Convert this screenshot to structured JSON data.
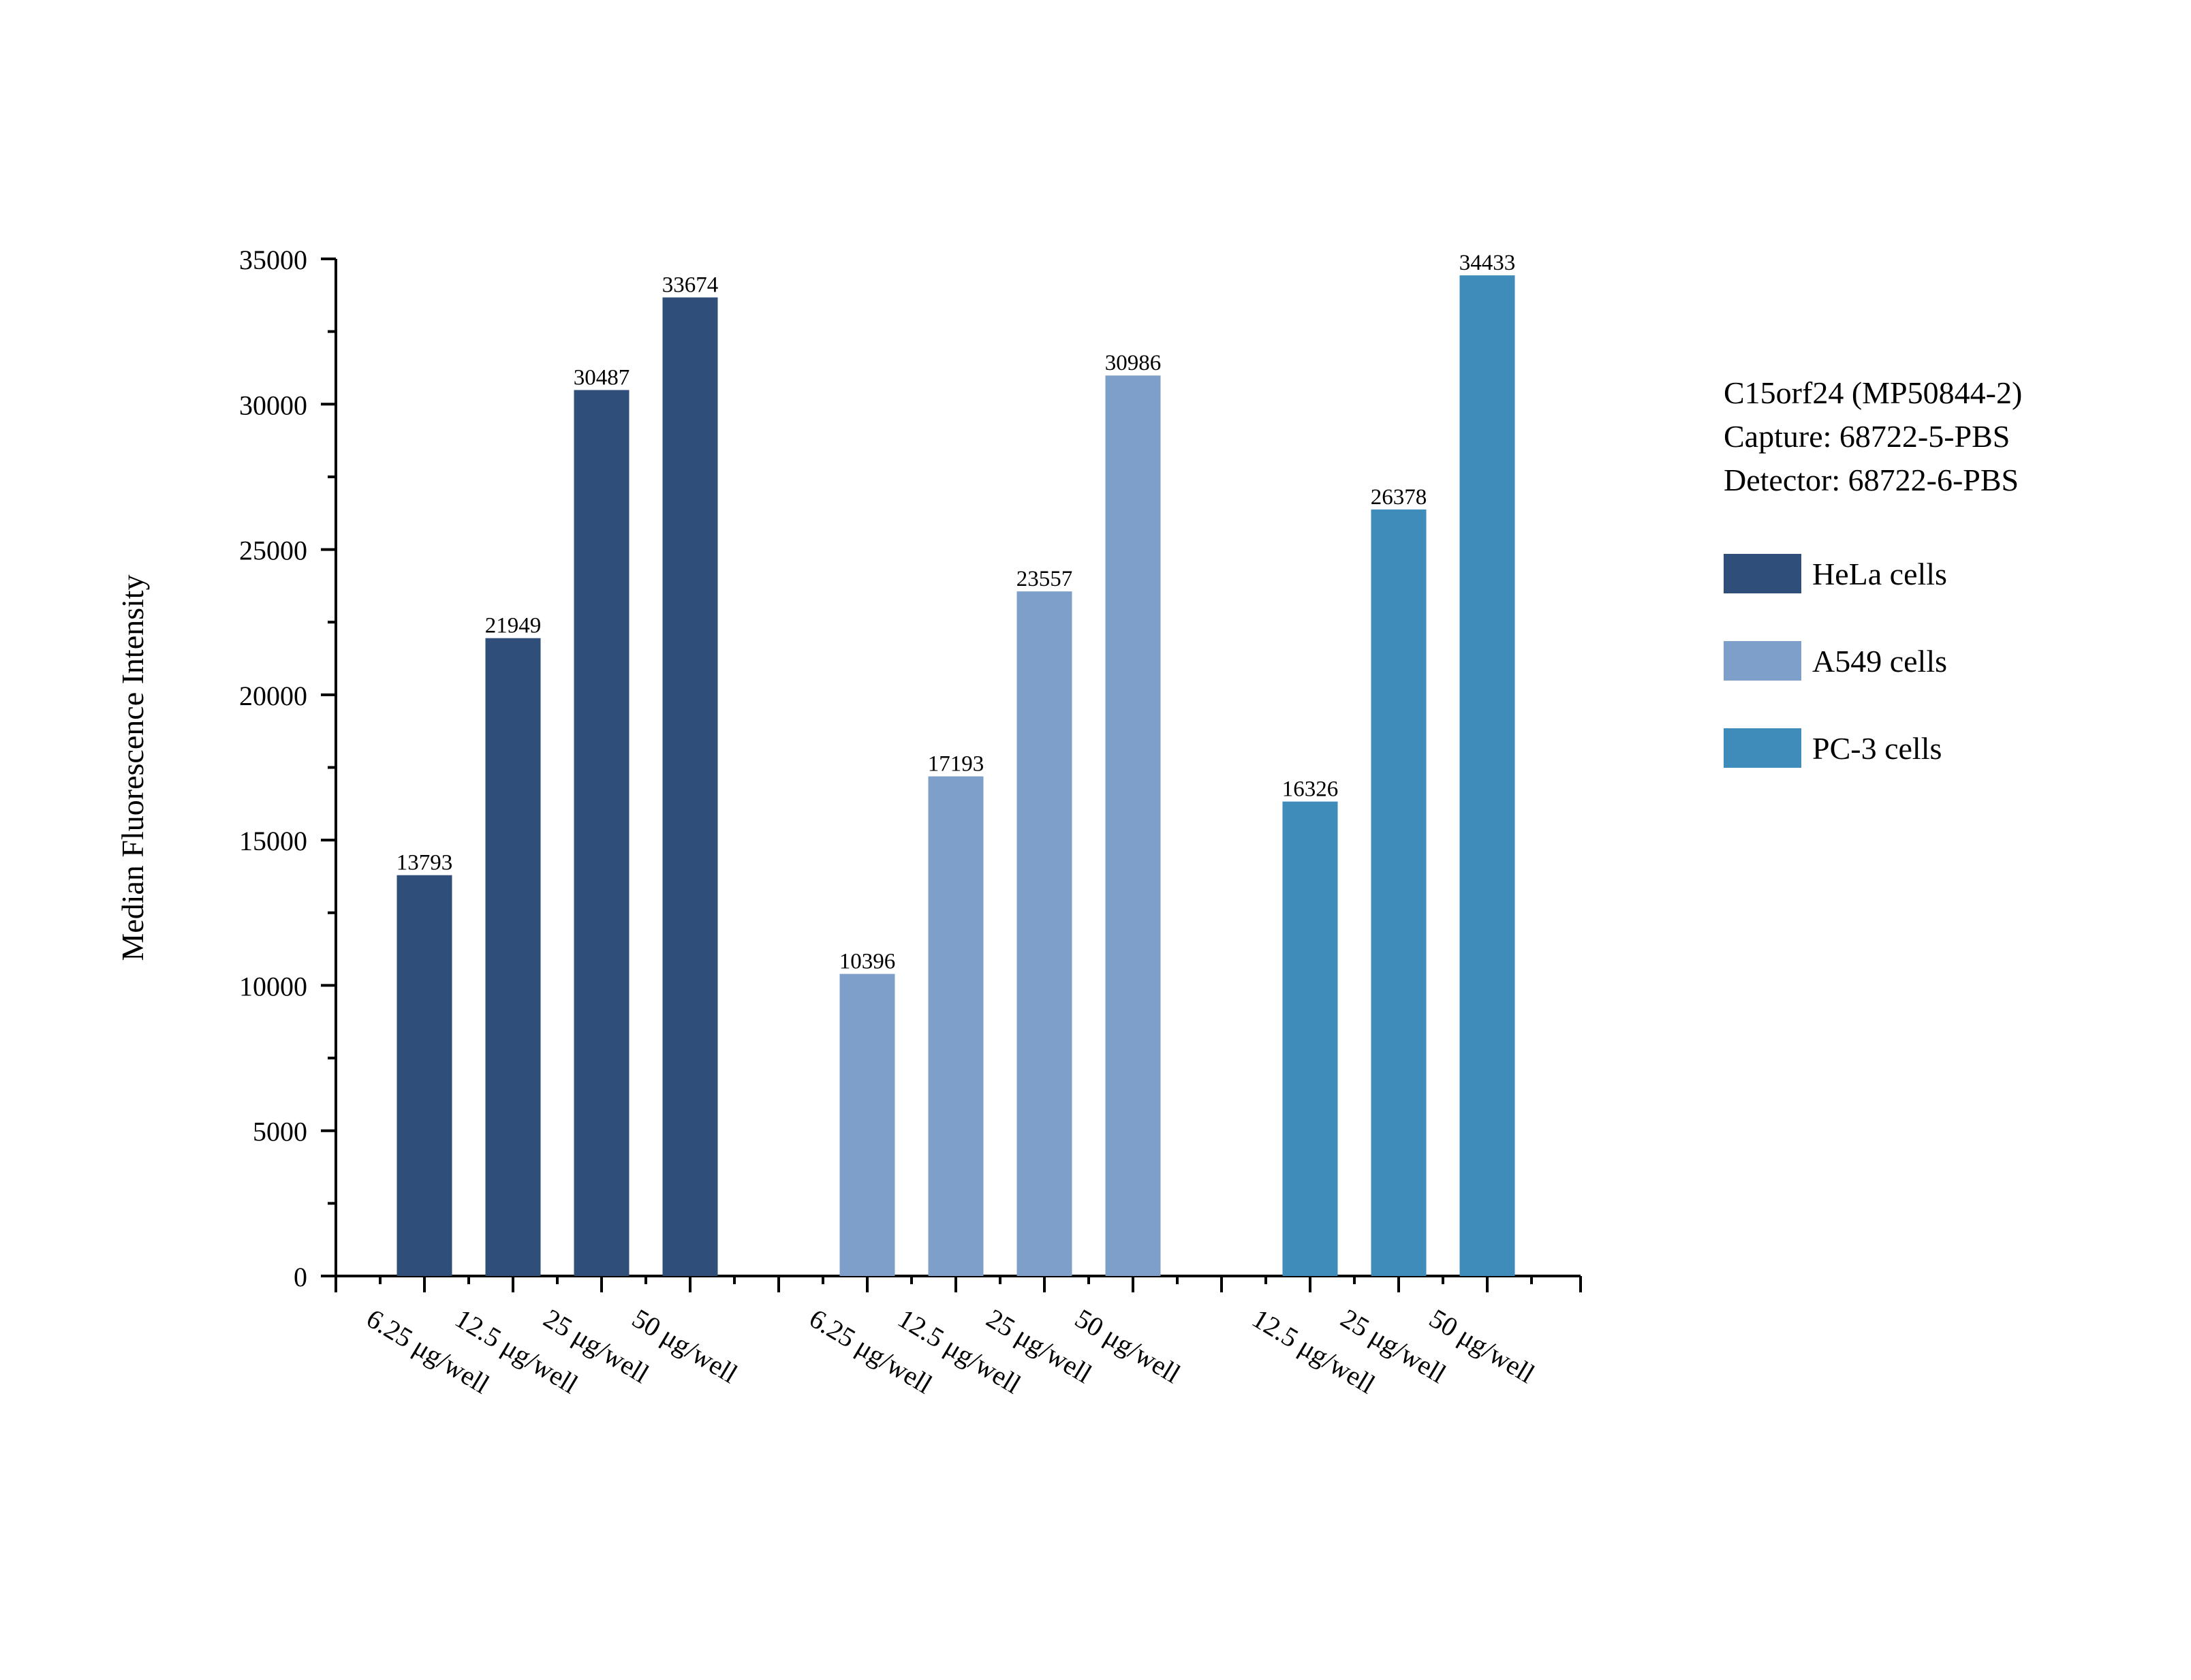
{
  "chart_data": {
    "type": "bar",
    "title_lines": [
      "C15orf24 (MP50844-2)",
      "Capture: 68722-5-PBS",
      "Detector: 68722-6-PBS"
    ],
    "ylabel": "Median Fluorescence Intensity",
    "xlabel": "",
    "ylim": [
      0,
      35000
    ],
    "yticks": [
      "0",
      "5000",
      "10000",
      "15000",
      "20000",
      "25000",
      "30000",
      "35000"
    ],
    "legend_position": "right",
    "series": [
      {
        "name": "HeLa cells",
        "color": "#2f4f7a",
        "categories": [
          "6.25 μg/well",
          "12.5 μg/well",
          "25 μg/well",
          "50 μg/well"
        ],
        "values": [
          13793,
          21949,
          30487,
          33674
        ],
        "labels": [
          "13793",
          "21949",
          "30487",
          "33674"
        ]
      },
      {
        "name": "A549 cells",
        "color": "#7f9fcb",
        "categories": [
          "6.25 μg/well",
          "12.5 μg/well",
          "25 μg/well",
          "50 μg/well"
        ],
        "values": [
          10396,
          17193,
          23557,
          30986
        ],
        "labels": [
          "10396",
          "17193",
          "23557",
          "30986"
        ]
      },
      {
        "name": "PC-3 cells",
        "color": "#3f8bba",
        "categories": [
          "12.5 μg/well",
          "25 μg/well",
          "50 μg/well"
        ],
        "values": [
          16326,
          26378,
          34433
        ],
        "labels": [
          "16326",
          "26378",
          "34433"
        ]
      }
    ]
  }
}
